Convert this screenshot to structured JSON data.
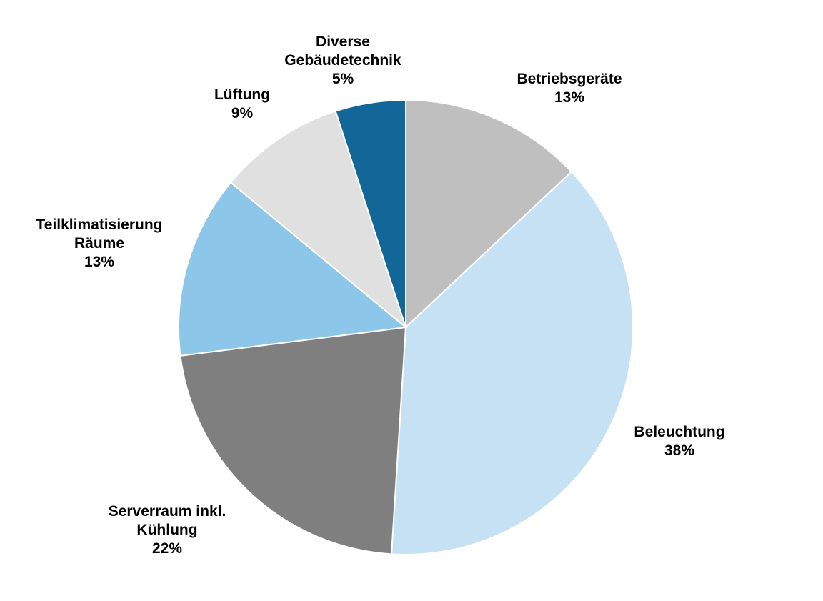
{
  "chart_data": {
    "type": "pie",
    "start": "12 o'clock",
    "direction": "clockwise",
    "slices": [
      {
        "label_lines": [
          "Betriebsgeräte"
        ],
        "value": 13,
        "value_label": "13%",
        "color": "#bfbfbf"
      },
      {
        "label_lines": [
          "Beleuchtung"
        ],
        "value": 38,
        "value_label": "38%",
        "color": "#c6e1f4"
      },
      {
        "label_lines": [
          "Serverraum inkl.",
          "Kühlung"
        ],
        "value": 22,
        "value_label": "22%",
        "color": "#7f7f7f"
      },
      {
        "label_lines": [
          "Teilklimatisierung",
          "Räume"
        ],
        "value": 13,
        "value_label": "13%",
        "color": "#8cc6e8"
      },
      {
        "label_lines": [
          "Lüftung"
        ],
        "value": 9,
        "value_label": "9%",
        "color": "#e0e0e0"
      },
      {
        "label_lines": [
          "Diverse",
          "Gebäudetechnik"
        ],
        "value": 5,
        "value_label": "5%",
        "color": "#136798"
      }
    ]
  }
}
